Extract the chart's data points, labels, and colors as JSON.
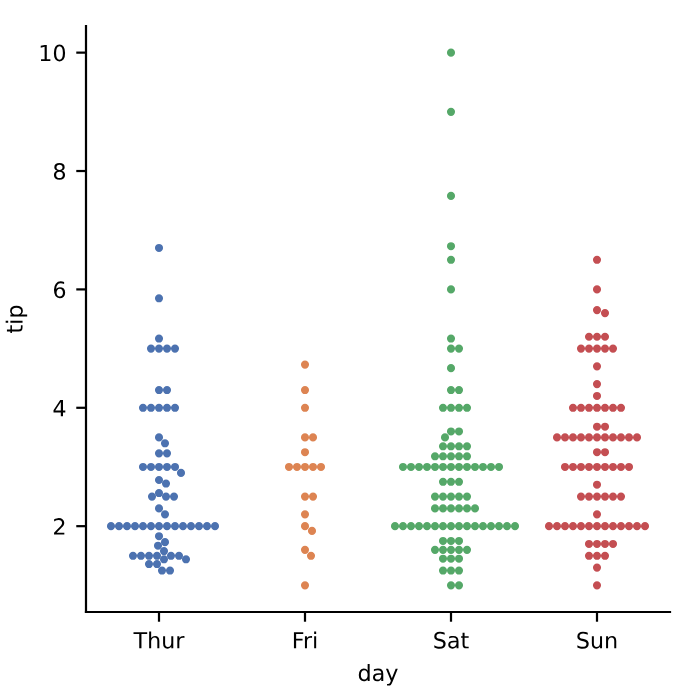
{
  "chart_data": {
    "type": "scatter",
    "xlabel": "day",
    "ylabel": "tip",
    "categories": [
      "Thur",
      "Fri",
      "Sat",
      "Sun"
    ],
    "ylim": [
      0.55,
      10.45
    ],
    "yticks": [
      2,
      4,
      6,
      8,
      10
    ],
    "grid": false,
    "marker": "circle",
    "series": [
      {
        "color": "#4c72b0",
        "x": [
          "Thur",
          "Thur",
          "Thur",
          "Thur",
          "Thur",
          "Thur",
          "Thur",
          "Thur",
          "Thur",
          "Thur",
          "Thur",
          "Thur",
          "Thur",
          "Thur",
          "Thur",
          "Thur",
          "Thur",
          "Thur",
          "Thur",
          "Thur",
          "Thur",
          "Thur",
          "Thur",
          "Thur",
          "Thur",
          "Thur",
          "Thur",
          "Thur",
          "Thur",
          "Thur",
          "Thur",
          "Thur",
          "Thur",
          "Thur",
          "Thur",
          "Thur",
          "Thur",
          "Thur",
          "Thur",
          "Thur",
          "Thur",
          "Thur",
          "Thur",
          "Thur",
          "Thur",
          "Thur",
          "Thur",
          "Thur",
          "Thur",
          "Thur",
          "Thur",
          "Thur",
          "Thur",
          "Thur",
          "Thur",
          "Thur",
          "Thur",
          "Thur",
          "Thur",
          "Thur",
          "Thur",
          "Thur"
        ],
        "values": [
          6.7,
          5.85,
          5.17,
          5,
          5,
          5,
          5,
          4.3,
          4.3,
          4,
          4,
          4,
          4,
          4,
          3.5,
          3.4,
          3.23,
          3.23,
          3,
          3,
          3,
          3,
          3,
          2.9,
          2.78,
          2.72,
          2.56,
          2.5,
          2.5,
          2.5,
          2.3,
          2.2,
          2,
          2,
          2,
          2,
          2,
          2,
          2,
          2,
          2,
          2,
          2,
          2,
          2,
          2,
          1.83,
          1.73,
          1.67,
          1.58,
          1.5,
          1.5,
          1.5,
          1.5,
          1.5,
          1.5,
          1.44,
          1.44,
          1.36,
          1.36,
          1.25,
          1.25
        ]
      },
      {
        "color": "#dd8452",
        "x": [
          "Fri",
          "Fri",
          "Fri",
          "Fri",
          "Fri",
          "Fri",
          "Fri",
          "Fri",
          "Fri",
          "Fri",
          "Fri",
          "Fri",
          "Fri",
          "Fri",
          "Fri",
          "Fri",
          "Fri",
          "Fri",
          "Fri"
        ],
        "values": [
          4.73,
          4.3,
          4,
          3.5,
          3.5,
          3.25,
          3,
          3,
          3,
          3,
          3,
          2.5,
          2.5,
          2.2,
          2.0,
          1.92,
          1.6,
          1.5,
          1.0
        ]
      },
      {
        "color": "#55a868",
        "x": [
          "Sat",
          "Sat",
          "Sat",
          "Sat",
          "Sat",
          "Sat",
          "Sat",
          "Sat",
          "Sat",
          "Sat",
          "Sat",
          "Sat",
          "Sat",
          "Sat",
          "Sat",
          "Sat",
          "Sat",
          "Sat",
          "Sat",
          "Sat",
          "Sat",
          "Sat",
          "Sat",
          "Sat",
          "Sat",
          "Sat",
          "Sat",
          "Sat",
          "Sat",
          "Sat",
          "Sat",
          "Sat",
          "Sat",
          "Sat",
          "Sat",
          "Sat",
          "Sat",
          "Sat",
          "Sat",
          "Sat",
          "Sat",
          "Sat",
          "Sat",
          "Sat",
          "Sat",
          "Sat",
          "Sat",
          "Sat",
          "Sat",
          "Sat",
          "Sat",
          "Sat",
          "Sat",
          "Sat",
          "Sat",
          "Sat",
          "Sat",
          "Sat",
          "Sat",
          "Sat",
          "Sat",
          "Sat",
          "Sat",
          "Sat",
          "Sat",
          "Sat",
          "Sat",
          "Sat",
          "Sat",
          "Sat",
          "Sat",
          "Sat",
          "Sat",
          "Sat",
          "Sat",
          "Sat",
          "Sat",
          "Sat",
          "Sat",
          "Sat",
          "Sat",
          "Sat",
          "Sat",
          "Sat",
          "Sat",
          "Sat",
          "Sat"
        ],
        "values": [
          10,
          9,
          7.58,
          6.73,
          6.5,
          6,
          5.17,
          5,
          5,
          4.67,
          4.3,
          4.3,
          4,
          4,
          4,
          4,
          3.6,
          3.6,
          3.5,
          3.35,
          3.35,
          3.35,
          3.35,
          3.18,
          3.18,
          3.18,
          3.18,
          3.18,
          3,
          3,
          3,
          3,
          3,
          3,
          3,
          3,
          3,
          3,
          3,
          3,
          3,
          2.75,
          2.75,
          2.75,
          2.5,
          2.5,
          2.5,
          2.5,
          2.5,
          2.3,
          2.3,
          2.3,
          2.3,
          2.3,
          2.3,
          2,
          2,
          2,
          2,
          2,
          2,
          2,
          2,
          2,
          2,
          2,
          2,
          2,
          2,
          2,
          2,
          1.75,
          1.75,
          1.75,
          1.6,
          1.6,
          1.6,
          1.6,
          1.6,
          1.45,
          1.45,
          1.45,
          1.25,
          1.25,
          1.25,
          1,
          1
        ]
      },
      {
        "color": "#c44e52",
        "x": [
          "Sun",
          "Sun",
          "Sun",
          "Sun",
          "Sun",
          "Sun",
          "Sun",
          "Sun",
          "Sun",
          "Sun",
          "Sun",
          "Sun",
          "Sun",
          "Sun",
          "Sun",
          "Sun",
          "Sun",
          "Sun",
          "Sun",
          "Sun",
          "Sun",
          "Sun",
          "Sun",
          "Sun",
          "Sun",
          "Sun",
          "Sun",
          "Sun",
          "Sun",
          "Sun",
          "Sun",
          "Sun",
          "Sun",
          "Sun",
          "Sun",
          "Sun",
          "Sun",
          "Sun",
          "Sun",
          "Sun",
          "Sun",
          "Sun",
          "Sun",
          "Sun",
          "Sun",
          "Sun",
          "Sun",
          "Sun",
          "Sun",
          "Sun",
          "Sun",
          "Sun",
          "Sun",
          "Sun",
          "Sun",
          "Sun",
          "Sun",
          "Sun",
          "Sun",
          "Sun",
          "Sun",
          "Sun",
          "Sun",
          "Sun",
          "Sun",
          "Sun",
          "Sun",
          "Sun",
          "Sun",
          "Sun",
          "Sun",
          "Sun",
          "Sun",
          "Sun",
          "Sun",
          "Sun"
        ],
        "values": [
          6.5,
          6,
          5.65,
          5.6,
          5.2,
          5.2,
          5.2,
          5,
          5,
          5,
          5,
          5,
          4.7,
          4.4,
          4.2,
          4,
          4,
          4,
          4,
          4,
          4,
          4,
          3.68,
          3.68,
          3.5,
          3.5,
          3.5,
          3.5,
          3.5,
          3.5,
          3.5,
          3.5,
          3.5,
          3.5,
          3.5,
          3.25,
          3.25,
          3,
          3,
          3,
          3,
          3,
          3,
          3,
          3,
          3,
          2.7,
          2.5,
          2.5,
          2.5,
          2.5,
          2.5,
          2.5,
          2.2,
          2,
          2,
          2,
          2,
          2,
          2,
          2,
          2,
          2,
          2,
          2,
          2,
          2,
          1.7,
          1.7,
          1.7,
          1.7,
          1.5,
          1.5,
          1.5,
          1.3,
          1
        ]
      }
    ]
  }
}
